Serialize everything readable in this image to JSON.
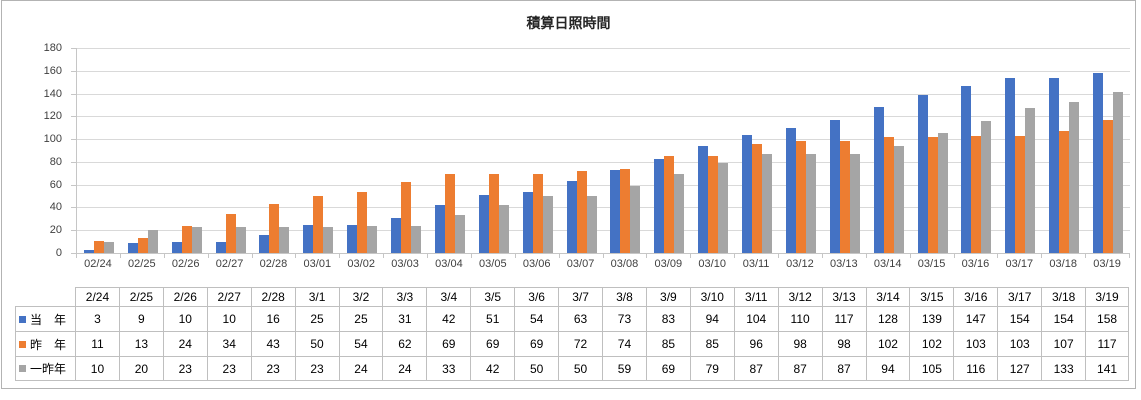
{
  "title": "積算日照時間",
  "chart_data": {
    "type": "bar",
    "title": "積算日照時間",
    "categories": [
      "02/24",
      "02/25",
      "02/26",
      "02/27",
      "02/28",
      "03/01",
      "03/02",
      "03/03",
      "03/04",
      "03/05",
      "03/06",
      "03/07",
      "03/08",
      "03/09",
      "03/10",
      "03/11",
      "03/12",
      "03/13",
      "03/14",
      "03/15",
      "03/16",
      "03/17",
      "03/18",
      "03/19"
    ],
    "y_axis": {
      "min": 0,
      "max": 180,
      "ticks": [
        0,
        20,
        40,
        60,
        80,
        100,
        120,
        140,
        160,
        180
      ]
    },
    "grid": "horizontal",
    "legend_position": "data-table-left",
    "series": [
      {
        "name": "当　年",
        "color": "#4472C4",
        "values": [
          3,
          9,
          10,
          10,
          16,
          25,
          25,
          31,
          42,
          51,
          54,
          63,
          73,
          83,
          94,
          104,
          110,
          117,
          128,
          139,
          147,
          154,
          154,
          158
        ]
      },
      {
        "name": "昨　年",
        "color": "#ED7D31",
        "values": [
          11,
          13,
          24,
          34,
          43,
          50,
          54,
          62,
          69,
          69,
          69,
          72,
          74,
          85,
          85,
          96,
          98,
          98,
          102,
          102,
          103,
          103,
          107,
          117
        ]
      },
      {
        "name": "一昨年",
        "color": "#A5A5A5",
        "values": [
          10,
          20,
          23,
          23,
          23,
          23,
          24,
          24,
          33,
          42,
          50,
          50,
          59,
          69,
          79,
          87,
          87,
          87,
          94,
          105,
          116,
          127,
          133,
          141
        ]
      }
    ],
    "data_table": {
      "headers": [
        "2/24",
        "2/25",
        "2/26",
        "2/27",
        "2/28",
        "3/1",
        "3/2",
        "3/3",
        "3/4",
        "3/5",
        "3/6",
        "3/7",
        "3/8",
        "3/9",
        "3/10",
        "3/11",
        "3/12",
        "3/13",
        "3/14",
        "3/15",
        "3/16",
        "3/17",
        "3/18",
        "3/19"
      ]
    }
  }
}
